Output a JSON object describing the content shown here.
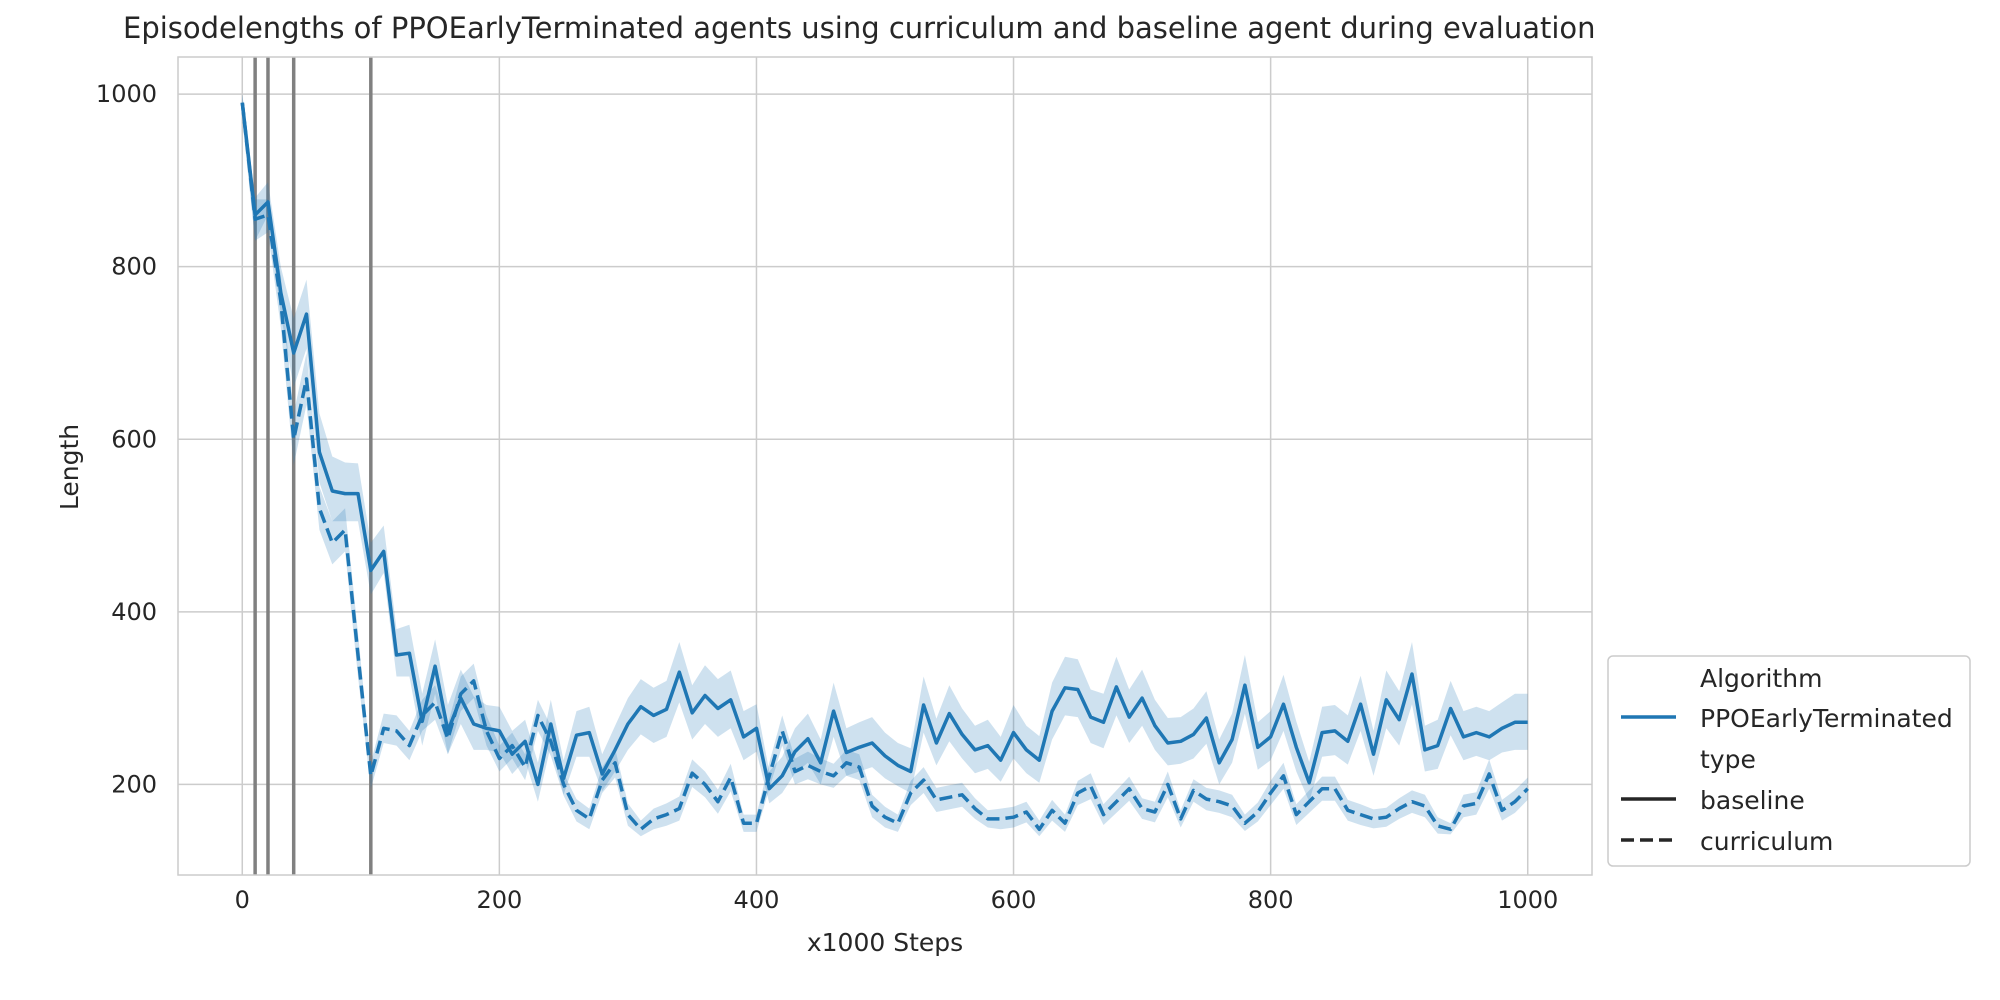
{
  "chart_data": {
    "type": "line",
    "title": "Episodelengths of PPOEarlyTerminated agents using curriculum and baseline agent during evaluation",
    "xlabel": "x1000 Steps",
    "ylabel": "Length",
    "xlim": [
      -50,
      1050
    ],
    "ylim": [
      95,
      1043
    ],
    "xticks": [
      0,
      200,
      400,
      600,
      800,
      1000
    ],
    "yticks": [
      200,
      400,
      600,
      800,
      1000
    ],
    "grid": true,
    "legend_position": "lower-right outside plot",
    "color": "#1f77b4",
    "band_color": "#1f77b4",
    "vline_color": "#808080",
    "curriculum_switch_steps": [
      10,
      20,
      40,
      100
    ],
    "legend": {
      "algorithm_title": "Algorithm",
      "algorithm_entry": "PPOEarlyTerminated",
      "type_title": "type",
      "baseline_label": "baseline",
      "curriculum_label": "curriculum"
    },
    "series": [
      {
        "name": "baseline",
        "style": "solid",
        "x": [
          0,
          10,
          20,
          30,
          40,
          50,
          60,
          70,
          80,
          90,
          100,
          110,
          120,
          130,
          140,
          150,
          160,
          170,
          180,
          190,
          200,
          210,
          220,
          230,
          240,
          250,
          260,
          270,
          280,
          290,
          300,
          310,
          320,
          330,
          340,
          350,
          360,
          370,
          380,
          390,
          400,
          410,
          420,
          430,
          440,
          450,
          460,
          470,
          480,
          490,
          500,
          510,
          520,
          530,
          540,
          550,
          560,
          570,
          580,
          590,
          600,
          610,
          620,
          630,
          640,
          650,
          660,
          670,
          680,
          690,
          700,
          710,
          720,
          730,
          740,
          750,
          760,
          770,
          780,
          790,
          800,
          810,
          820,
          830,
          840,
          850,
          860,
          870,
          880,
          890,
          900,
          910,
          920,
          930,
          940,
          950,
          960,
          970,
          980,
          990,
          1000
        ],
        "y": [
          990,
          860,
          875,
          770,
          700,
          745,
          585,
          540,
          537,
          537,
          448,
          470,
          350,
          352,
          273,
          337,
          262,
          300,
          270,
          265,
          262,
          235,
          250,
          200,
          270,
          207,
          257,
          260,
          212,
          240,
          270,
          290,
          280,
          287,
          330,
          283,
          303,
          288,
          298,
          255,
          265,
          195,
          210,
          238,
          253,
          225,
          285,
          237,
          243,
          248,
          233,
          222,
          215,
          292,
          248,
          282,
          258,
          240,
          245,
          228,
          260,
          240,
          228,
          285,
          312,
          310,
          278,
          272,
          313,
          278,
          300,
          268,
          248,
          250,
          258,
          277,
          225,
          252,
          315,
          243,
          255,
          293,
          243,
          202,
          260,
          262,
          250,
          293,
          235,
          298,
          275,
          328,
          240,
          245,
          288,
          255,
          260,
          255,
          265,
          272,
          272
        ],
        "ci_low": [
          970,
          830,
          860,
          745,
          660,
          705,
          550,
          505,
          505,
          505,
          420,
          445,
          325,
          325,
          245,
          305,
          235,
          270,
          240,
          240,
          237,
          212,
          228,
          180,
          245,
          188,
          232,
          232,
          192,
          215,
          240,
          258,
          248,
          255,
          295,
          252,
          270,
          255,
          265,
          228,
          238,
          178,
          190,
          213,
          225,
          200,
          255,
          210,
          215,
          220,
          207,
          198,
          190,
          260,
          222,
          250,
          230,
          213,
          218,
          203,
          230,
          213,
          202,
          252,
          280,
          278,
          248,
          242,
          280,
          248,
          268,
          240,
          222,
          224,
          230,
          247,
          200,
          225,
          282,
          217,
          228,
          262,
          215,
          180,
          232,
          234,
          223,
          262,
          210,
          265,
          245,
          293,
          215,
          218,
          257,
          228,
          233,
          228,
          237,
          240,
          240
        ],
        "ci_high": [
          1000,
          880,
          898,
          800,
          740,
          785,
          630,
          580,
          573,
          572,
          480,
          500,
          380,
          385,
          305,
          368,
          292,
          333,
          302,
          292,
          290,
          262,
          275,
          225,
          298,
          228,
          285,
          290,
          235,
          268,
          300,
          322,
          312,
          320,
          365,
          315,
          338,
          322,
          332,
          285,
          293,
          215,
          232,
          265,
          282,
          252,
          318,
          265,
          272,
          278,
          260,
          248,
          242,
          325,
          276,
          315,
          288,
          268,
          275,
          255,
          292,
          268,
          256,
          318,
          348,
          345,
          310,
          305,
          348,
          310,
          333,
          298,
          277,
          278,
          288,
          308,
          252,
          282,
          350,
          272,
          285,
          327,
          273,
          226,
          290,
          292,
          280,
          326,
          262,
          332,
          308,
          365,
          268,
          275,
          320,
          285,
          290,
          285,
          295,
          305,
          305
        ]
      },
      {
        "name": "curriculum",
        "style": "dashed",
        "x": [
          0,
          10,
          20,
          30,
          40,
          50,
          60,
          70,
          80,
          90,
          100,
          110,
          120,
          130,
          140,
          150,
          160,
          170,
          180,
          190,
          200,
          210,
          220,
          230,
          240,
          250,
          260,
          270,
          280,
          290,
          300,
          310,
          320,
          330,
          340,
          350,
          360,
          370,
          380,
          390,
          400,
          410,
          420,
          430,
          440,
          450,
          460,
          470,
          480,
          490,
          500,
          510,
          520,
          530,
          540,
          550,
          560,
          570,
          580,
          590,
          600,
          610,
          620,
          630,
          640,
          650,
          660,
          670,
          680,
          690,
          700,
          710,
          720,
          730,
          740,
          750,
          760,
          770,
          780,
          790,
          800,
          810,
          820,
          830,
          840,
          850,
          860,
          870,
          880,
          890,
          900,
          910,
          920,
          930,
          940,
          950,
          960,
          970,
          980,
          990,
          1000
        ],
        "y": [
          990,
          855,
          860,
          760,
          600,
          670,
          520,
          480,
          495,
          350,
          210,
          265,
          262,
          245,
          280,
          295,
          253,
          305,
          320,
          262,
          230,
          245,
          220,
          280,
          250,
          200,
          170,
          160,
          205,
          225,
          165,
          148,
          160,
          165,
          172,
          213,
          200,
          180,
          208,
          155,
          155,
          210,
          262,
          215,
          222,
          215,
          210,
          225,
          220,
          175,
          162,
          155,
          190,
          205,
          182,
          185,
          188,
          172,
          160,
          160,
          162,
          168,
          148,
          170,
          155,
          190,
          198,
          165,
          180,
          195,
          172,
          168,
          200,
          160,
          193,
          183,
          180,
          175,
          155,
          168,
          190,
          210,
          165,
          180,
          195,
          195,
          170,
          165,
          160,
          162,
          172,
          180,
          175,
          152,
          148,
          175,
          178,
          212,
          170,
          180,
          195
        ],
        "ci_low": [
          975,
          830,
          840,
          730,
          570,
          640,
          495,
          455,
          470,
          325,
          195,
          248,
          245,
          228,
          262,
          275,
          235,
          285,
          300,
          245,
          215,
          230,
          205,
          262,
          233,
          187,
          157,
          148,
          190,
          208,
          152,
          140,
          148,
          152,
          158,
          197,
          185,
          166,
          192,
          145,
          145,
          195,
          245,
          200,
          206,
          200,
          196,
          210,
          205,
          162,
          150,
          145,
          176,
          190,
          168,
          171,
          174,
          160,
          150,
          148,
          150,
          156,
          140,
          158,
          145,
          176,
          183,
          153,
          167,
          181,
          160,
          156,
          185,
          150,
          180,
          170,
          167,
          162,
          146,
          157,
          176,
          195,
          153,
          167,
          181,
          181,
          158,
          153,
          149,
          151,
          160,
          167,
          162,
          143,
          142,
          162,
          165,
          195,
          158,
          167,
          182
        ],
        "ci_high": [
          1000,
          878,
          878,
          790,
          630,
          700,
          545,
          505,
          520,
          375,
          225,
          282,
          280,
          262,
          298,
          315,
          270,
          325,
          340,
          280,
          245,
          260,
          235,
          298,
          268,
          213,
          183,
          172,
          220,
          242,
          178,
          158,
          172,
          178,
          186,
          229,
          215,
          194,
          224,
          165,
          165,
          225,
          280,
          230,
          238,
          230,
          224,
          240,
          235,
          188,
          174,
          165,
          204,
          220,
          196,
          199,
          202,
          184,
          170,
          172,
          174,
          180,
          158,
          182,
          165,
          204,
          213,
          177,
          193,
          209,
          184,
          180,
          215,
          170,
          206,
          196,
          193,
          188,
          165,
          179,
          204,
          225,
          177,
          193,
          209,
          209,
          182,
          177,
          171,
          173,
          184,
          193,
          188,
          162,
          155,
          188,
          191,
          229,
          182,
          193,
          208
        ]
      }
    ]
  }
}
